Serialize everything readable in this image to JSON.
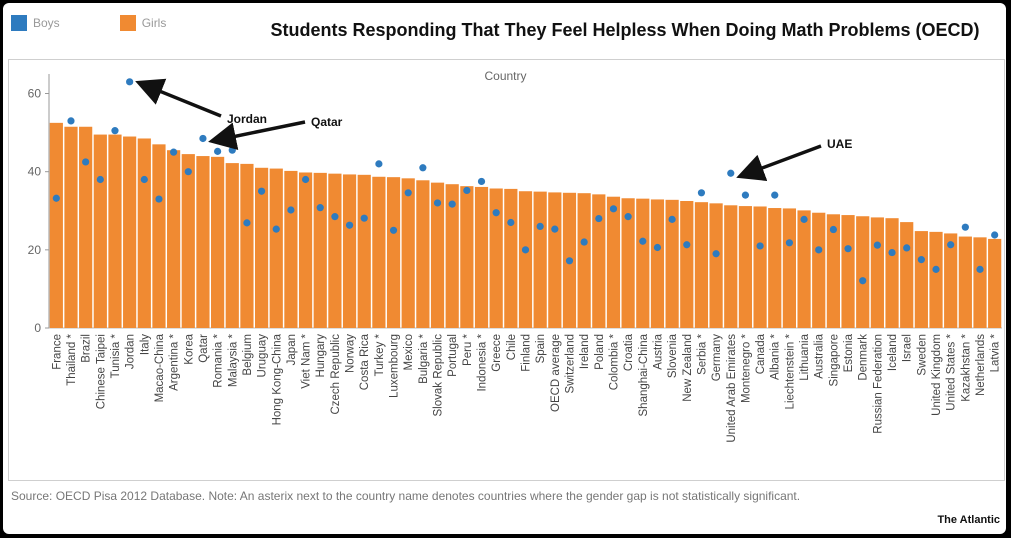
{
  "header": {
    "title": "Students Responding That They Feel Helpless When Doing Math Problems (OECD)",
    "legend": [
      {
        "label": "Boys",
        "color": "#2e7bbf"
      },
      {
        "label": "Girls",
        "color": "#f08a32"
      }
    ]
  },
  "footer": {
    "source": "Source: OECD Pisa 2012 Database. Note: An asterix next to the country name denotes countries where the gender gap is not statistically significant.",
    "brand": "The Atlantic"
  },
  "chart_data": {
    "type": "bar",
    "title": "Country",
    "xlabel": "",
    "ylabel": "",
    "ylim": [
      0,
      65
    ],
    "yticks": [
      0,
      20,
      40,
      60
    ],
    "grid": false,
    "legend_position": "top-left",
    "categories": [
      "France",
      "Thailand *",
      "Brazil",
      "Chinese Taipei",
      "Tunisia *",
      "Jordan",
      "Italy",
      "Macao-China",
      "Argentina *",
      "Korea",
      "Qatar",
      "Romania *",
      "Malaysia *",
      "Belgium",
      "Uruguay",
      "Hong Kong-China",
      "Japan",
      "Viet Nam *",
      "Hungary",
      "Czech Republic",
      "Norway",
      "Costa Rica",
      "Turkey *",
      "Luxembourg",
      "Mexico",
      "Bulgaria *",
      "Slovak Republic",
      "Portugal",
      "Peru *",
      "Indonesia *",
      "Greece",
      "Chile",
      "Finland",
      "Spain",
      "OECD average",
      "Switzerland",
      "Ireland",
      "Poland",
      "Colombia *",
      "Croatia",
      "Shanghai-China",
      "Austria",
      "Slovenia",
      "New Zealand",
      "Serbia *",
      "Germany",
      "United Arab Emirates",
      "Montenegro *",
      "Canada",
      "Albania *",
      "Liechtenstein *",
      "Lithuania",
      "Australia",
      "Singapore",
      "Estonia",
      "Denmark",
      "Russian Federation",
      "Iceland",
      "Israel",
      "Sweden",
      "United Kingdom",
      "United States *",
      "Kazakhstan *",
      "Netherlands",
      "Latvia *"
    ],
    "series": [
      {
        "name": "Girls",
        "color": "#f08a32",
        "style": "bar",
        "values": [
          52.5,
          51.5,
          51.5,
          49.5,
          49.5,
          49,
          48.5,
          47,
          45.5,
          44.5,
          44,
          43.8,
          42.2,
          42,
          41,
          40.8,
          40.2,
          39.8,
          39.7,
          39.5,
          39.3,
          39.2,
          38.7,
          38.6,
          38.3,
          37.8,
          37.2,
          36.8,
          36.3,
          36.1,
          35.7,
          35.6,
          35,
          34.9,
          34.7,
          34.6,
          34.5,
          34.2,
          33.6,
          33.2,
          33.1,
          32.9,
          32.8,
          32.5,
          32.2,
          31.9,
          31.4,
          31.2,
          31.1,
          30.7,
          30.6,
          30.1,
          29.5,
          29.1,
          28.9,
          28.6,
          28.3,
          28.1,
          27.1,
          24.8,
          24.6,
          24.2,
          23.4,
          23.2,
          22.8
        ]
      },
      {
        "name": "Boys",
        "color": "#2e7bbf",
        "style": "dot",
        "values": [
          33.2,
          53,
          42.5,
          38,
          50.5,
          63,
          38,
          33,
          45,
          40,
          48.5,
          45.2,
          45.5,
          26.9,
          35,
          25.3,
          30.2,
          38,
          30.8,
          28.5,
          26.3,
          28.1,
          42,
          25,
          34.6,
          41,
          32,
          31.7,
          35.2,
          37.5,
          29.5,
          27,
          20,
          26,
          25.3,
          17.2,
          22,
          28,
          30.5,
          28.5,
          22.2,
          20.6,
          27.8,
          21.3,
          34.6,
          19,
          39.6,
          34,
          21,
          34,
          21.8,
          27.8,
          20,
          25.2,
          20.3,
          12.1,
          21.2,
          19.3,
          20.5,
          17.5,
          15,
          21.3,
          25.8,
          15,
          23.8
        ]
      }
    ],
    "annotations": [
      {
        "text": "Jordan",
        "target": "Jordan"
      },
      {
        "text": "Qatar",
        "target": "Qatar"
      },
      {
        "text": "UAE",
        "target": "United Arab Emirates"
      }
    ]
  }
}
